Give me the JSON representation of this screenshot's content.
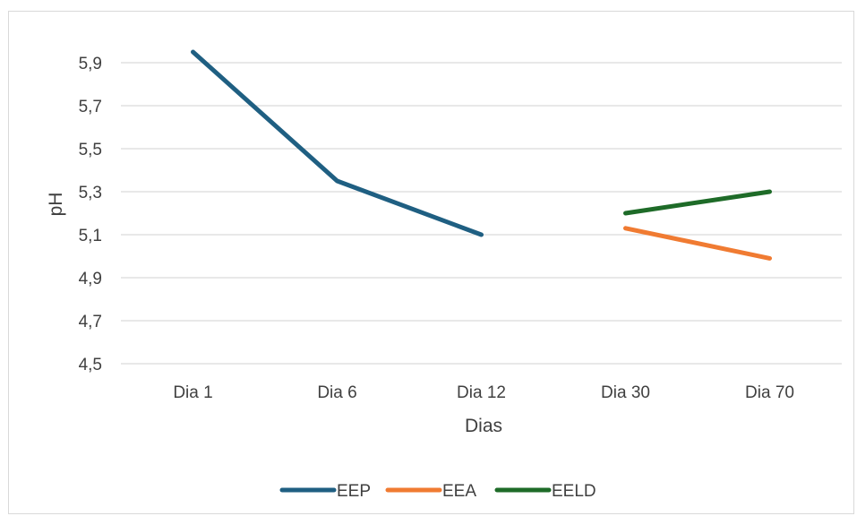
{
  "chart_data": {
    "type": "line",
    "title": "",
    "xlabel": "Dias",
    "ylabel": "pH",
    "categories": [
      "Dia 1",
      "Dia 6",
      "Dia 12",
      "Dia 30",
      "Dia 70"
    ],
    "y_ticks": [
      "4,5",
      "4,7",
      "4,9",
      "5,1",
      "5,3",
      "5,5",
      "5,7",
      "5,9"
    ],
    "ylim": [
      4.5,
      6.0
    ],
    "grid": "horizontal",
    "legend_position": "bottom",
    "series": [
      {
        "name": "EEP",
        "color": "#1f5f82",
        "values": [
          5.95,
          5.35,
          5.1,
          null,
          null
        ]
      },
      {
        "name": "EEA",
        "color": "#f07b32",
        "values": [
          null,
          null,
          null,
          5.13,
          4.99
        ]
      },
      {
        "name": "EELD",
        "color": "#1e6b28",
        "values": [
          null,
          null,
          null,
          5.2,
          5.3
        ]
      }
    ]
  }
}
